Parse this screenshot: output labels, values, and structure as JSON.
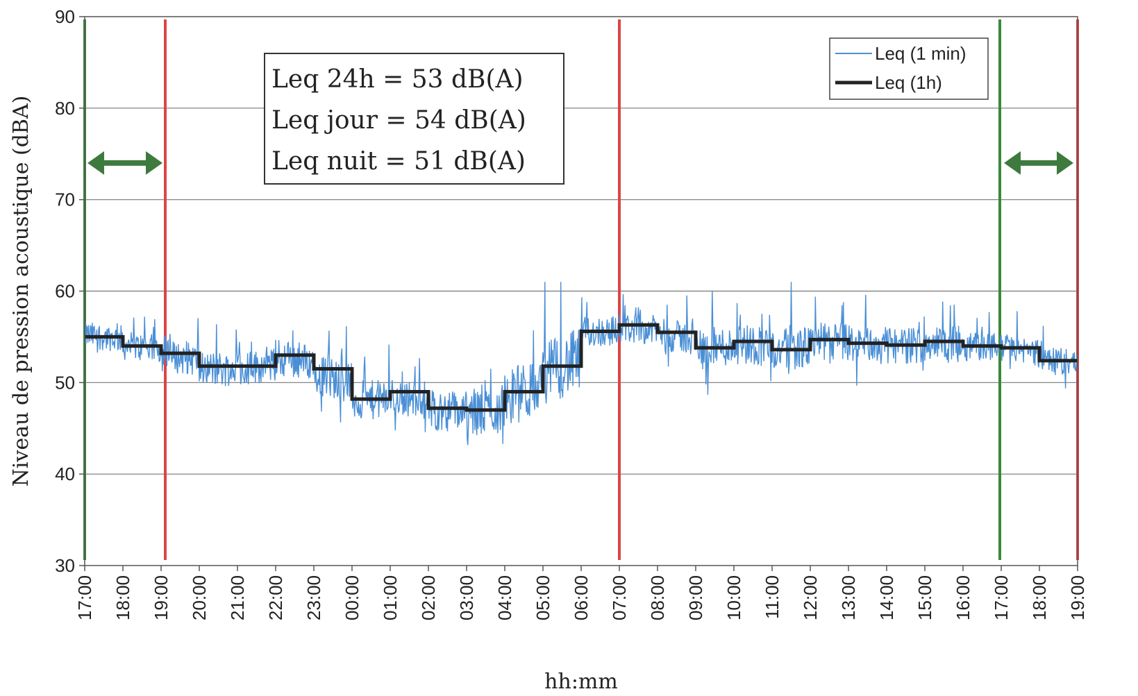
{
  "chart_data": {
    "type": "line",
    "title": "",
    "xlabel": "hh:mm",
    "ylabel": "Niveau de pression acoustique (dBA)",
    "ylim": [
      30,
      90
    ],
    "y_ticks": [
      "30",
      "40",
      "50",
      "60",
      "70",
      "80",
      "90"
    ],
    "x_ticks": [
      "17:00",
      "18:00",
      "19:00",
      "20:00",
      "21:00",
      "22:00",
      "23:00",
      "00:00",
      "01:00",
      "02:00",
      "03:00",
      "04:00",
      "05:00",
      "06:00",
      "07:00",
      "08:00",
      "09:00",
      "10:00",
      "11:00",
      "12:00",
      "13:00",
      "14:00",
      "15:00",
      "16:00",
      "17:00",
      "18:00",
      "19:00"
    ],
    "grid": true,
    "legend_position": "top-right",
    "series": [
      {
        "name": "Leq (1 min)",
        "color": "#4a8fd6",
        "style": "noisy",
        "hourly_base": [
          55.2,
          54.0,
          53.0,
          51.5,
          51.5,
          52.8,
          51.0,
          48.0,
          48.5,
          47.0,
          46.5,
          48.5,
          51.0,
          55.5,
          56.0,
          55.3,
          53.8,
          54.3,
          53.5,
          54.5,
          54.2,
          54.0,
          54.3,
          54.0,
          53.8,
          52.3
        ],
        "spread": [
          1.5,
          1.6,
          1.8,
          2.0,
          1.9,
          2.0,
          2.3,
          2.2,
          2.0,
          2.3,
          2.8,
          3.2,
          3.5,
          1.7,
          1.6,
          1.8,
          2.2,
          2.3,
          2.3,
          2.1,
          2.0,
          2.0,
          2.0,
          1.6,
          1.5,
          1.5
        ]
      },
      {
        "name": "Leq (1h)",
        "color": "#222222",
        "style": "step",
        "values": [
          55.0,
          54.0,
          53.2,
          51.8,
          51.8,
          53.0,
          51.5,
          48.2,
          49.0,
          47.2,
          47.0,
          49.0,
          51.8,
          55.6,
          56.3,
          55.5,
          53.8,
          54.5,
          53.6,
          54.7,
          54.3,
          54.1,
          54.5,
          54.0,
          53.8,
          52.4
        ]
      }
    ],
    "vertical_markers": [
      {
        "x": "17:00",
        "color": "#3a8a3a"
      },
      {
        "x": "19:00",
        "color": "#dd4444"
      },
      {
        "x": "07:00",
        "color": "#dd4444"
      },
      {
        "x": "17:00",
        "color": "#3a8a3a"
      },
      {
        "x": "19:00",
        "color": "#dd4444"
      }
    ],
    "arrows": [
      {
        "from": "17:00",
        "to": "19:00",
        "y": 74,
        "color": "#3e7a3e"
      },
      {
        "from": "17:00",
        "to": "19:00",
        "y": 74,
        "color": "#3e7a3e"
      }
    ],
    "annotation_box": {
      "lines": [
        "Leq 24h = 53 dB(A)",
        "Leq jour = 54 dB(A)",
        "Leq nuit = 51 dB(A)"
      ]
    }
  }
}
